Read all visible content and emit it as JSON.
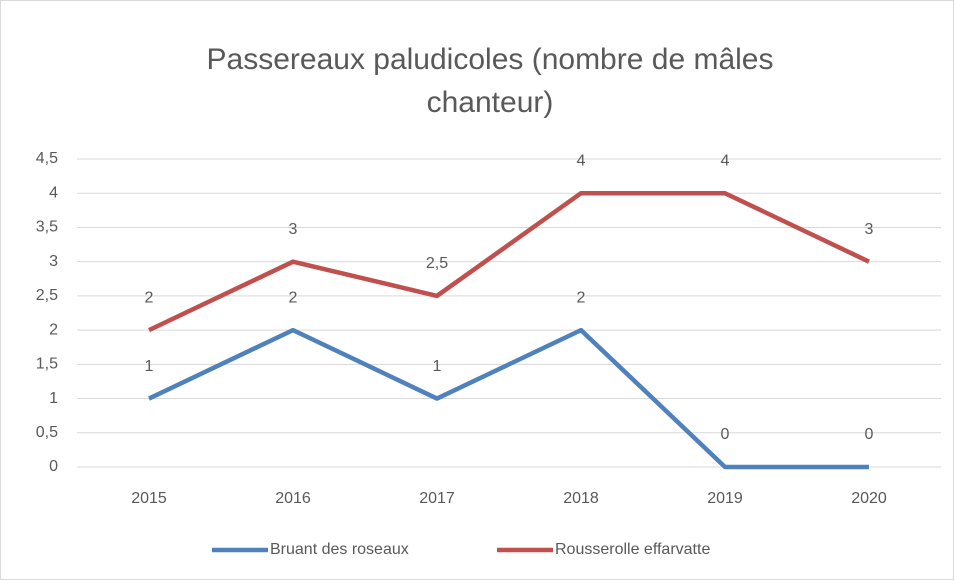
{
  "chart_data": {
    "type": "line",
    "title": "Passereaux paludicoles (nombre de mâles chanteur)",
    "categories": [
      "2015",
      "2016",
      "2017",
      "2018",
      "2019",
      "2020"
    ],
    "series": [
      {
        "name": "Bruant des roseaux",
        "color": "#4f81bd",
        "values": [
          1,
          2,
          1,
          2,
          0,
          0
        ]
      },
      {
        "name": "Rousserolle effarvatte",
        "color": "#c0504d",
        "values": [
          2,
          3,
          2.5,
          4,
          4,
          3
        ],
        "value_labels": [
          "2",
          "3",
          "2,5",
          "4",
          "4",
          "3"
        ]
      }
    ],
    "ylim": [
      0,
      4.5
    ],
    "yticks": [
      0,
      {
        "value": 0.5,
        "label": "0,5"
      },
      1,
      {
        "value": 1.5,
        "label": "1,5"
      },
      2,
      {
        "value": 2.5,
        "label": "2,5"
      },
      3,
      {
        "value": 3.5,
        "label": "3,5"
      },
      4,
      {
        "value": 4.5,
        "label": "4,5"
      }
    ],
    "grid": true,
    "legend": "bottom"
  }
}
